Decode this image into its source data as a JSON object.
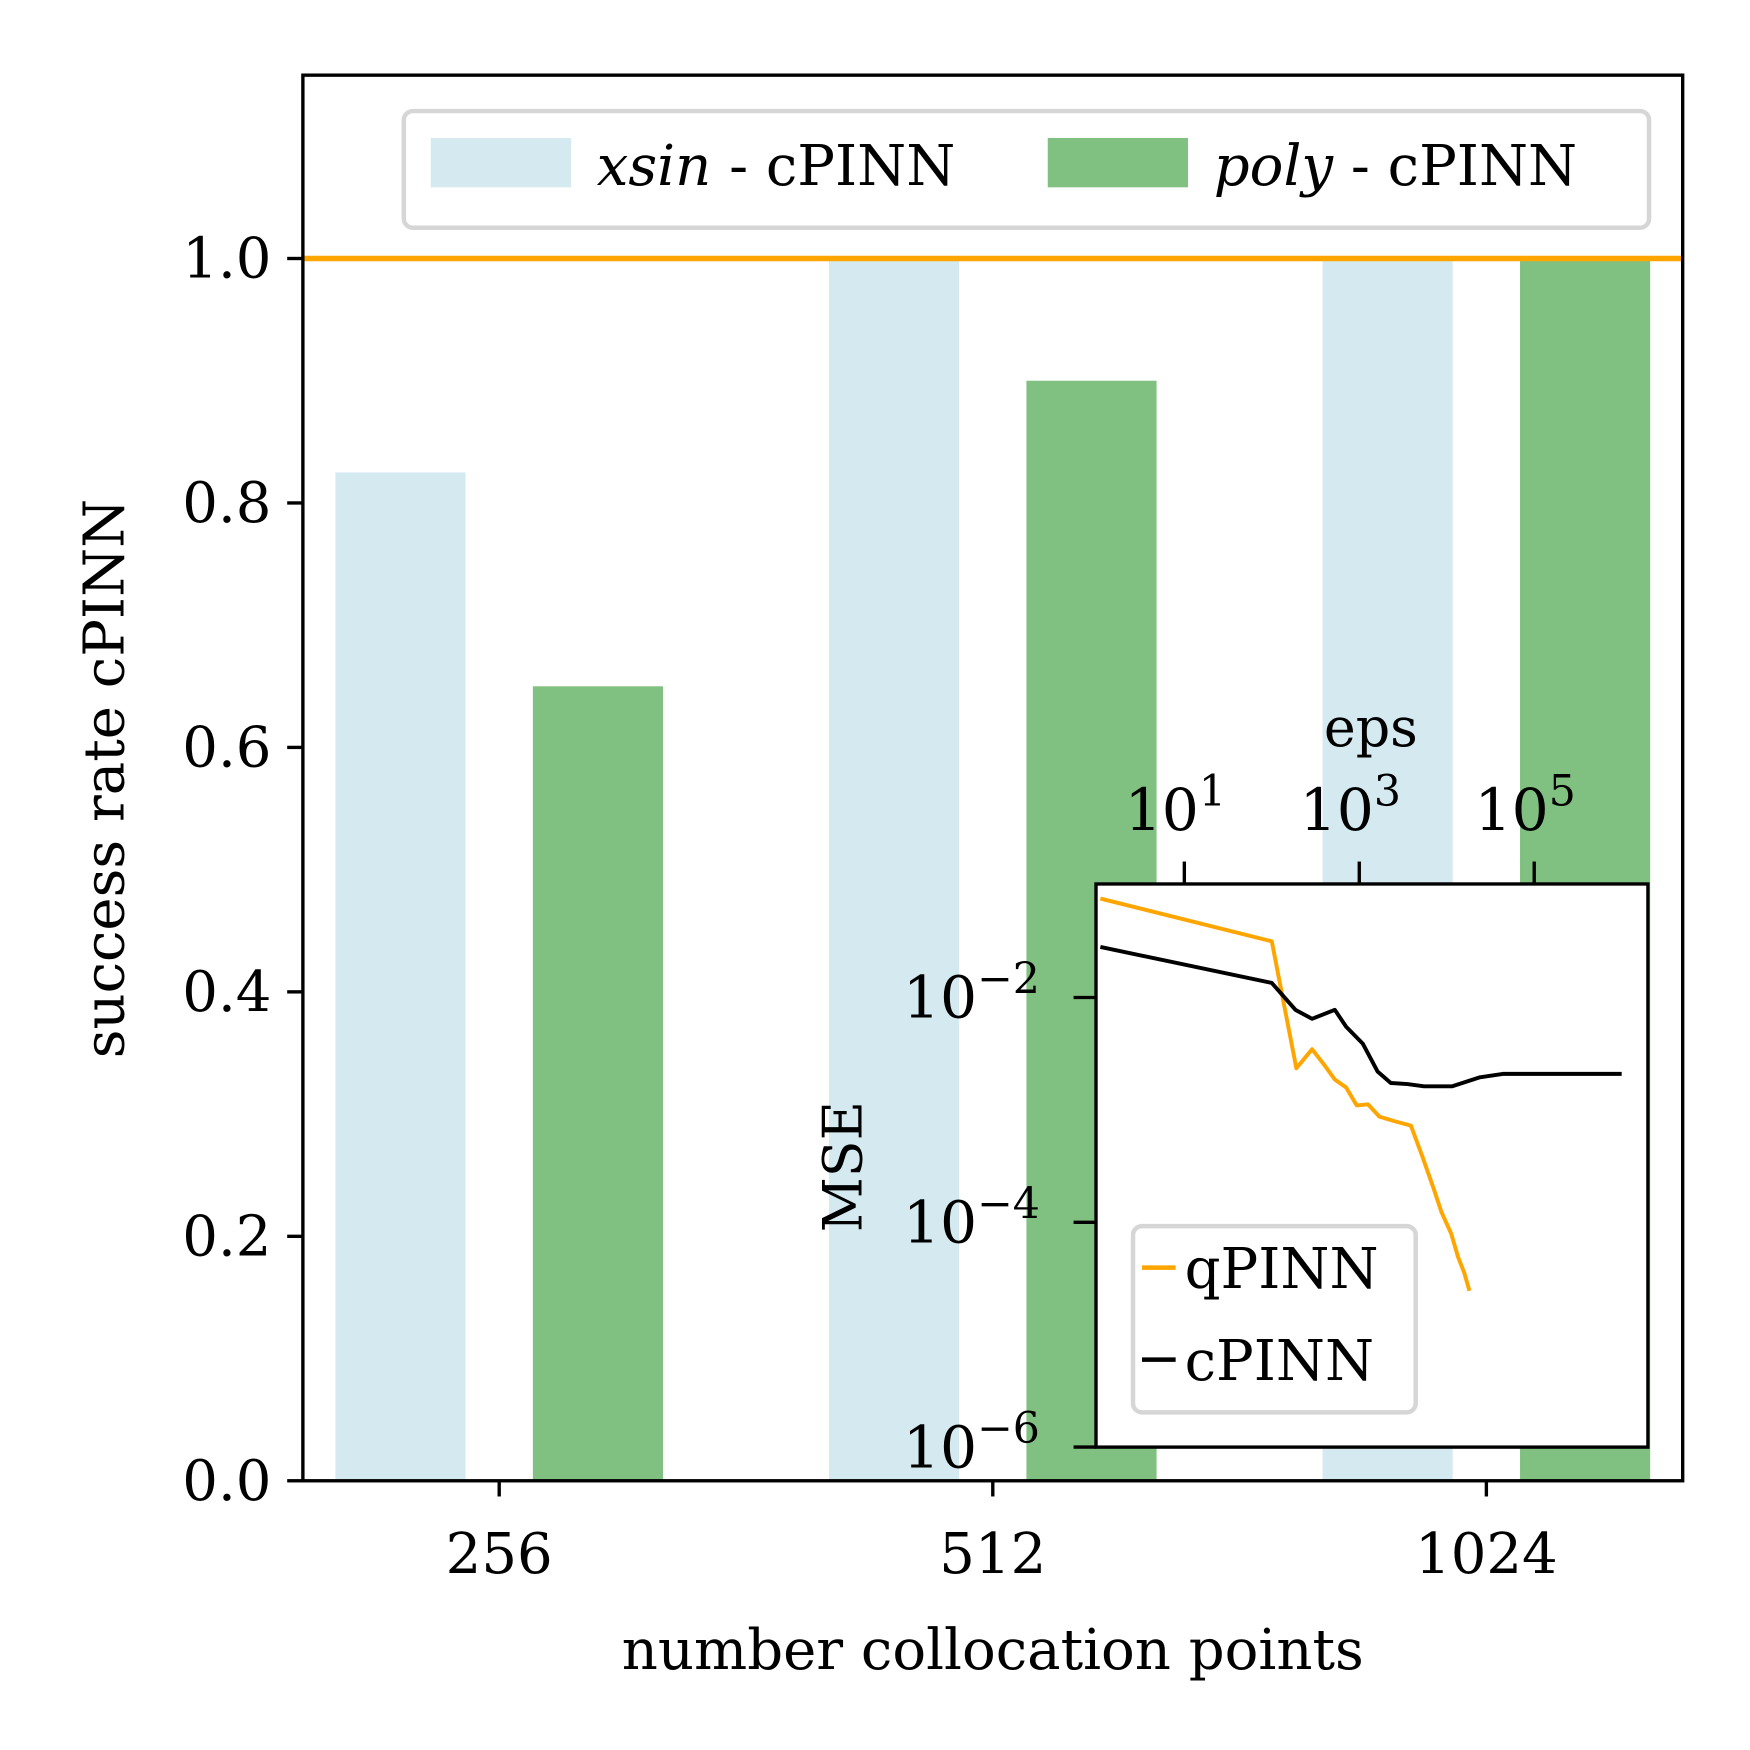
{
  "chart_data": [
    {
      "type": "bar",
      "categories": [
        "256",
        "512",
        "1024"
      ],
      "series": [
        {
          "name": "xsin - cPINN",
          "name_italic": "xsin",
          "name_rest": " - cPINN",
          "color": "#d4eaf0",
          "values": [
            0.825,
            1.0,
            1.0
          ]
        },
        {
          "name": "poly - cPINN",
          "name_italic": "poly",
          "name_rest": " - cPINN",
          "color": "#80c080",
          "values": [
            0.65,
            0.9,
            1.0
          ]
        }
      ],
      "reference_line": {
        "value": 1.0,
        "color": "#ffa500"
      },
      "xlabel": "number collocation points",
      "ylabel": "success rate cPINN",
      "ylim": [
        0,
        1.15
      ],
      "yticks": [
        0.0,
        0.2,
        0.4,
        0.6,
        0.8,
        1.0
      ],
      "ytick_labels": [
        "0.0",
        "0.2",
        "0.4",
        "0.6",
        "0.8",
        "1.0"
      ],
      "legend": "top-right"
    },
    {
      "type": "line",
      "title": "inset",
      "xlabel": "eps",
      "xscale": "log",
      "xaxis_position": "top",
      "xlim_log10": [
        -0.01,
        6.3
      ],
      "xticks_log10": [
        1,
        3,
        5
      ],
      "xtick_labels": [
        {
          "base": "10",
          "exp": "1"
        },
        {
          "base": "10",
          "exp": "3"
        },
        {
          "base": "10",
          "exp": "5"
        }
      ],
      "ylabel": "MSE",
      "yscale": "log",
      "ylim_log10": [
        -6,
        -0.99
      ],
      "yticks_log10": [
        -2,
        -4,
        -6
      ],
      "ytick_labels": [
        {
          "base": "10",
          "exp": "−2"
        },
        {
          "base": "10",
          "exp": "−4"
        },
        {
          "base": "10",
          "exp": "−6"
        }
      ],
      "legend": "lower-left",
      "series": [
        {
          "name": "qPINN",
          "color": "#ffa500",
          "log10_x": [
            0.04,
            2.0,
            2.28,
            2.46,
            2.6,
            2.72,
            2.85,
            2.97,
            3.1,
            3.23,
            3.4,
            3.59,
            3.72,
            3.85,
            3.94,
            4.05,
            4.13,
            4.2,
            4.26
          ],
          "log10_y": [
            -1.12,
            -1.5,
            -2.63,
            -2.46,
            -2.6,
            -2.73,
            -2.8,
            -2.96,
            -2.95,
            -3.06,
            -3.1,
            -3.14,
            -3.41,
            -3.7,
            -3.91,
            -4.1,
            -4.31,
            -4.45,
            -4.61
          ]
        },
        {
          "name": "cPINN",
          "color": "#000000",
          "log10_x": [
            0.04,
            2.0,
            2.27,
            2.46,
            2.72,
            2.85,
            3.04,
            3.21,
            3.36,
            3.55,
            3.74,
            4.06,
            4.38,
            4.64,
            5.0,
            5.5,
            6.0
          ],
          "log10_y": [
            -1.55,
            -1.87,
            -2.11,
            -2.19,
            -2.11,
            -2.26,
            -2.41,
            -2.66,
            -2.76,
            -2.77,
            -2.79,
            -2.79,
            -2.71,
            -2.68,
            -2.68,
            -2.68,
            -2.68
          ]
        }
      ]
    }
  ]
}
